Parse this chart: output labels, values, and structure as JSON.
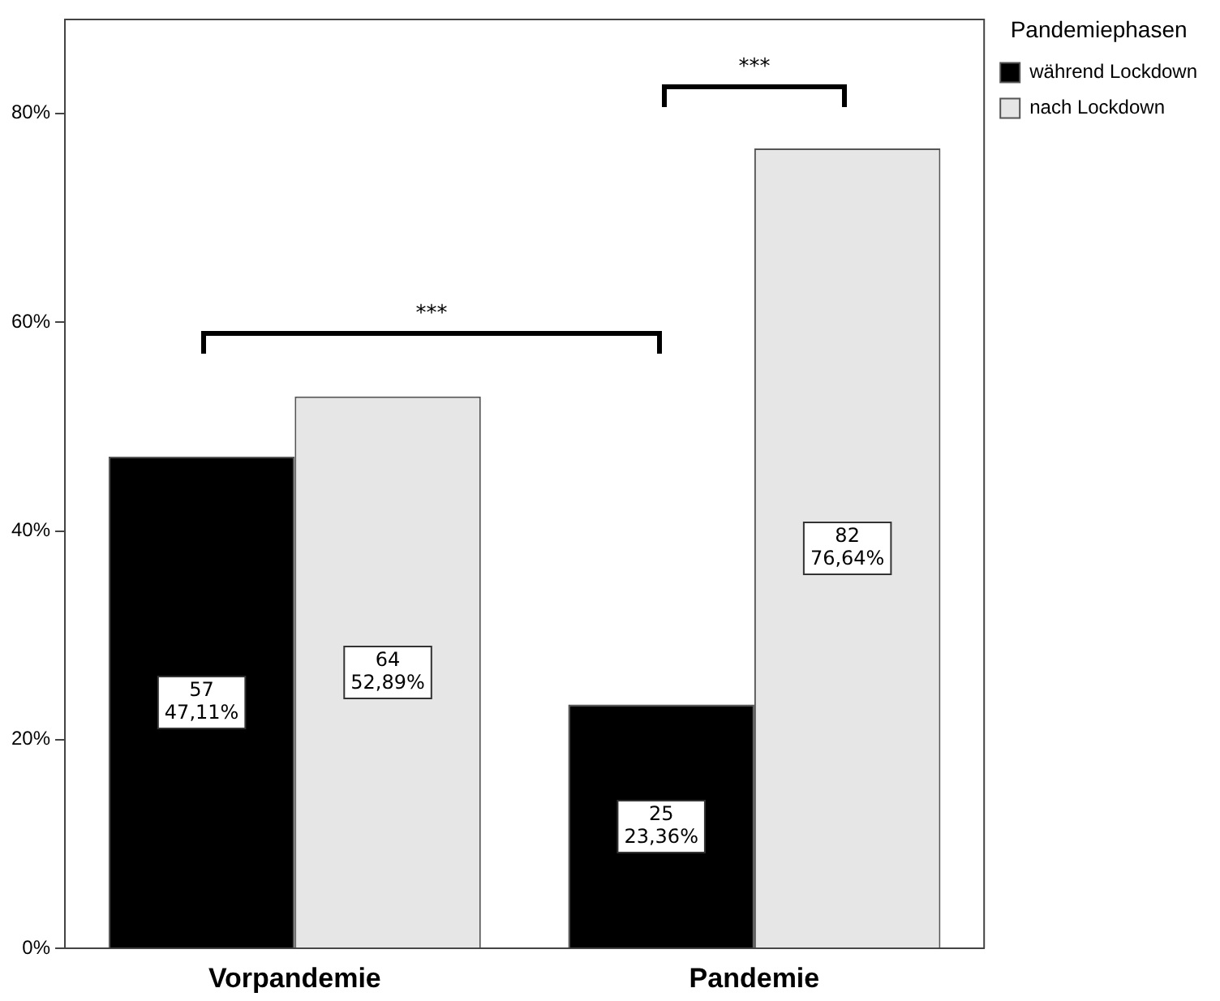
{
  "chart_data": {
    "type": "bar",
    "categories": [
      "Vorpandemie",
      "Pandemie"
    ],
    "series": [
      {
        "name": "während Lockdown",
        "color": "#000000",
        "values": [
          47.11,
          23.36
        ],
        "value_labels": [
          "57\n47,11%",
          "25\n23,36%"
        ]
      },
      {
        "name": "nach Lockdown",
        "color": "#e6e6e6",
        "values": [
          52.89,
          76.64
        ],
        "value_labels": [
          "64\n52,89%",
          "82\n76,64%"
        ]
      }
    ],
    "ylim": [
      0,
      89
    ],
    "yticks": [
      {
        "value": 0,
        "label": "0%"
      },
      {
        "value": 20,
        "label": "20%"
      },
      {
        "value": 40,
        "label": "40%"
      },
      {
        "value": 60,
        "label": "60%"
      },
      {
        "value": 80,
        "label": "80%"
      }
    ],
    "legend": "top right",
    "legend_title": "Pandemiephasen",
    "grid": false,
    "annotations": [
      "***",
      "***"
    ]
  }
}
